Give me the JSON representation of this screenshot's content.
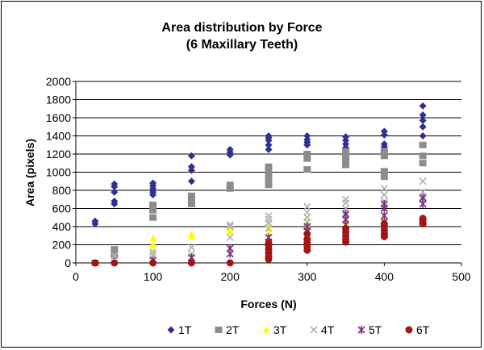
{
  "chart_data": {
    "type": "scatter",
    "title": [
      "Area distribution by Force",
      "(6 Maxillary Teeth)"
    ],
    "xlabel": "Forces (N)",
    "ylabel": "Area (pixels)",
    "xlim": [
      0,
      500
    ],
    "ylim": [
      0,
      2000
    ],
    "xticks": [
      0,
      100,
      200,
      300,
      400,
      500
    ],
    "yticks": [
      0,
      200,
      400,
      600,
      800,
      1000,
      1200,
      1400,
      1600,
      1800,
      2000
    ],
    "grid": "horizontal",
    "legend_position": "bottom",
    "series": [
      {
        "name": "1T",
        "marker": "diamond",
        "color": "#2e3192",
        "x": [
          25,
          25,
          50,
          50,
          50,
          50,
          50,
          100,
          100,
          100,
          100,
          100,
          150,
          150,
          150,
          150,
          200,
          200,
          200,
          250,
          250,
          250,
          250,
          250,
          300,
          300,
          300,
          300,
          350,
          350,
          350,
          350,
          400,
          400,
          400,
          400,
          450,
          450,
          450,
          450,
          450
        ],
        "y": [
          430,
          460,
          650,
          680,
          780,
          840,
          870,
          750,
          780,
          820,
          850,
          880,
          900,
          1020,
          1060,
          1180,
          1190,
          1220,
          1250,
          1250,
          1300,
          1350,
          1380,
          1400,
          1300,
          1330,
          1360,
          1400,
          1270,
          1310,
          1350,
          1390,
          1280,
          1310,
          1410,
          1450,
          1400,
          1500,
          1570,
          1630,
          1730
        ]
      },
      {
        "name": "2T",
        "marker": "square",
        "color": "#8c8c8c",
        "x": [
          25,
          50,
          50,
          100,
          100,
          100,
          150,
          150,
          150,
          200,
          200,
          250,
          250,
          250,
          250,
          300,
          300,
          300,
          350,
          350,
          350,
          350,
          400,
          400,
          400,
          400,
          450,
          450,
          450
        ],
        "y": [
          0,
          80,
          150,
          500,
          580,
          640,
          650,
          700,
          740,
          820,
          860,
          860,
          930,
          1000,
          1060,
          1030,
          1150,
          1200,
          1080,
          1140,
          1180,
          1230,
          950,
          1010,
          1180,
          1230,
          1100,
          1180,
          1300
        ]
      },
      {
        "name": "3T",
        "marker": "triangle",
        "color": "#ffff00",
        "x": [
          100,
          100,
          100,
          150,
          150,
          200,
          200,
          250,
          250,
          250,
          300,
          300,
          300,
          350,
          350,
          350,
          400,
          400,
          400,
          450,
          450
        ],
        "y": [
          140,
          200,
          270,
          290,
          320,
          340,
          380,
          330,
          380,
          430,
          350,
          400,
          440,
          390,
          420,
          460,
          430,
          460,
          480,
          450,
          490
        ]
      },
      {
        "name": "4T",
        "marker": "x",
        "color": "#b3b3b3",
        "x": [
          50,
          100,
          100,
          150,
          150,
          200,
          200,
          200,
          250,
          250,
          250,
          250,
          300,
          300,
          300,
          300,
          350,
          350,
          350,
          350,
          400,
          400,
          400,
          400,
          450,
          450,
          450
        ],
        "y": [
          80,
          90,
          120,
          100,
          170,
          280,
          400,
          420,
          380,
          440,
          480,
          520,
          450,
          500,
          560,
          620,
          520,
          600,
          660,
          700,
          600,
          680,
          750,
          820,
          700,
          780,
          900
        ]
      },
      {
        "name": "5T",
        "marker": "star",
        "color": "#7b2d81",
        "x": [
          100,
          150,
          200,
          200,
          250,
          250,
          250,
          300,
          300,
          300,
          350,
          350,
          350,
          400,
          400,
          400,
          400,
          450,
          450
        ],
        "y": [
          30,
          60,
          100,
          160,
          180,
          230,
          280,
          300,
          350,
          400,
          420,
          480,
          540,
          450,
          520,
          600,
          650,
          650,
          720
        ]
      },
      {
        "name": "6T",
        "marker": "circle",
        "color": "#a31515",
        "x": [
          25,
          50,
          100,
          150,
          200,
          250,
          250,
          250,
          250,
          250,
          250,
          300,
          300,
          300,
          300,
          300,
          350,
          350,
          350,
          350,
          350,
          400,
          400,
          400,
          400,
          400,
          450,
          450,
          450,
          450
        ],
        "y": [
          0,
          0,
          0,
          0,
          0,
          40,
          70,
          110,
          150,
          190,
          220,
          140,
          180,
          220,
          260,
          320,
          230,
          260,
          300,
          340,
          380,
          290,
          320,
          360,
          400,
          430,
          430,
          450,
          470,
          490
        ]
      }
    ]
  }
}
